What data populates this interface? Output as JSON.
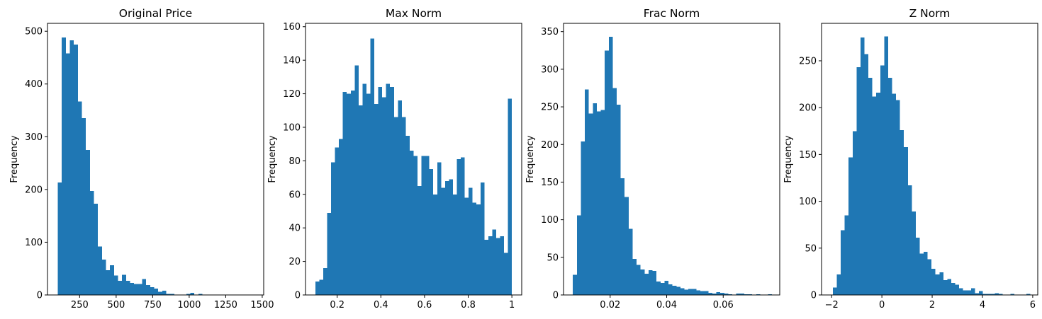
{
  "chart_data": [
    {
      "type": "bar",
      "title": "Original Price",
      "xlabel": "",
      "ylabel": "Frequency",
      "xlim": [
        30,
        1510
      ],
      "ylim": [
        0,
        515
      ],
      "xticks": [
        250,
        500,
        750,
        1000,
        1250,
        1500
      ],
      "yticks": [
        0,
        100,
        200,
        300,
        400,
        500
      ],
      "bin_start": 100,
      "bin_width": 27.5,
      "values": [
        213,
        488,
        458,
        483,
        475,
        367,
        335,
        275,
        197,
        173,
        92,
        67,
        47,
        56,
        37,
        27,
        38,
        27,
        23,
        21,
        21,
        30,
        19,
        15,
        12,
        6,
        8,
        2,
        2,
        1,
        1,
        1,
        2,
        4,
        1,
        2,
        0,
        0,
        0,
        0,
        0,
        0,
        0,
        0,
        0,
        0,
        0,
        0,
        0,
        1
      ]
    },
    {
      "type": "bar",
      "title": "Max Norm",
      "xlabel": "",
      "ylabel": "Frequency",
      "xlim": [
        0.055,
        1.045
      ],
      "ylim": [
        0,
        162
      ],
      "xticks": [
        0.2,
        0.4,
        0.6,
        0.8,
        1.0
      ],
      "ytick_labels": [
        "0",
        "20",
        "40",
        "60",
        "80",
        "100",
        "120",
        "140",
        "160"
      ],
      "yticks": [
        0,
        20,
        40,
        60,
        80,
        100,
        120,
        140,
        160
      ],
      "bin_start": 0.1,
      "bin_width": 0.018,
      "values": [
        8,
        9,
        16,
        49,
        79,
        88,
        93,
        121,
        120,
        122,
        137,
        113,
        126,
        120,
        153,
        114,
        124,
        118,
        126,
        124,
        106,
        116,
        106,
        95,
        86,
        83,
        65,
        83,
        83,
        75,
        60,
        79,
        64,
        68,
        69,
        60,
        81,
        82,
        58,
        64,
        55,
        54,
        67,
        33,
        35,
        39,
        34,
        35,
        25,
        117
      ]
    },
    {
      "type": "bar",
      "title": "Frac Norm",
      "xlabel": "",
      "ylabel": "Frequency",
      "xlim": [
        0.0035,
        0.08
      ],
      "ylim": [
        0,
        361
      ],
      "xticks": [
        0.02,
        0.04,
        0.06
      ],
      "ytick_labels": [
        "0",
        "50",
        "100",
        "150",
        "200",
        "250",
        "300",
        "350"
      ],
      "yticks": [
        0,
        50,
        100,
        150,
        200,
        250,
        300,
        350
      ],
      "bin_start": 0.0068,
      "bin_width": 0.00141,
      "values": [
        27,
        106,
        204,
        273,
        241,
        255,
        244,
        246,
        325,
        343,
        275,
        253,
        155,
        130,
        88,
        48,
        40,
        34,
        28,
        33,
        32,
        18,
        16,
        19,
        14,
        12,
        11,
        9,
        7,
        8,
        8,
        6,
        5,
        5,
        3,
        2,
        4,
        3,
        2,
        1,
        0,
        2,
        2,
        1,
        1,
        0,
        1,
        0,
        0,
        1
      ]
    },
    {
      "type": "bar",
      "title": "Z Norm",
      "xlabel": "",
      "ylabel": "Frequency",
      "xlim": [
        -2.4,
        6.2
      ],
      "ylim": [
        0,
        290
      ],
      "xticks": [
        -2,
        0,
        2,
        4,
        6
      ],
      "ytick_labels": [
        "0",
        "50",
        "100",
        "150",
        "200",
        "250"
      ],
      "yticks": [
        0,
        50,
        100,
        150,
        200,
        250
      ],
      "bin_start": -1.95,
      "bin_width": 0.157,
      "values": [
        8,
        22,
        69,
        85,
        147,
        175,
        243,
        275,
        257,
        232,
        212,
        216,
        245,
        276,
        232,
        215,
        208,
        176,
        158,
        117,
        89,
        61,
        44,
        46,
        38,
        28,
        22,
        24,
        16,
        17,
        13,
        11,
        7,
        5,
        5,
        7,
        2,
        4,
        1,
        1,
        1,
        2,
        1,
        0,
        0,
        1,
        0,
        0,
        0,
        1
      ]
    }
  ]
}
